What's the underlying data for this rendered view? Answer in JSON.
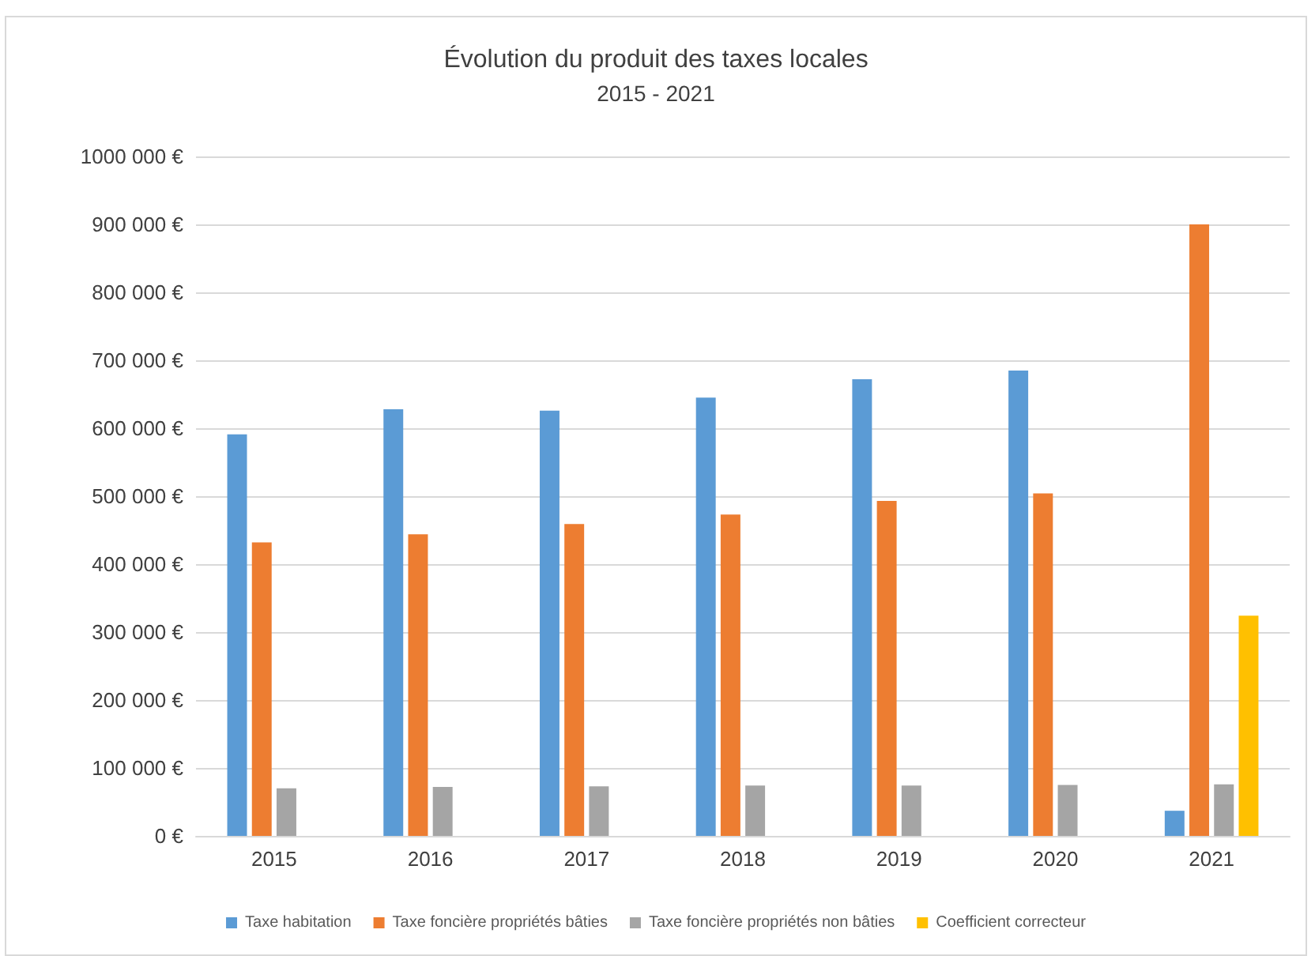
{
  "chart_data": {
    "type": "bar",
    "title": "Évolution du produit des taxes locales",
    "subtitle": "2015 - 2021",
    "categories": [
      "2015",
      "2016",
      "2017",
      "2018",
      "2019",
      "2020",
      "2021"
    ],
    "series": [
      {
        "name": "Taxe habitation",
        "color": "#5b9bd5",
        "values": [
          591000,
          628000,
          626000,
          645000,
          672000,
          685000,
          37000
        ]
      },
      {
        "name": "Taxe foncière propriétés bâties",
        "color": "#ed7d31",
        "values": [
          432000,
          444000,
          459000,
          473000,
          493000,
          504000,
          900000
        ]
      },
      {
        "name": "Taxe foncière propriétés non bâties",
        "color": "#a5a5a5",
        "values": [
          70000,
          72000,
          73000,
          74000,
          74000,
          75000,
          76000
        ]
      },
      {
        "name": "Coefficient correcteur",
        "color": "#ffc000",
        "values": [
          null,
          null,
          null,
          null,
          null,
          null,
          324000
        ]
      }
    ],
    "ylim": [
      0,
      1000000
    ],
    "yticks": [
      {
        "value": 0,
        "label": "0 €"
      },
      {
        "value": 100000,
        "label": "100 000 €"
      },
      {
        "value": 200000,
        "label": "200 000 €"
      },
      {
        "value": 300000,
        "label": "300 000 €"
      },
      {
        "value": 400000,
        "label": "400 000 €"
      },
      {
        "value": 500000,
        "label": "500 000 €"
      },
      {
        "value": 600000,
        "label": "600 000 €"
      },
      {
        "value": 700000,
        "label": "700 000 €"
      },
      {
        "value": 800000,
        "label": "800 000 €"
      },
      {
        "value": 900000,
        "label": "900 000 €"
      },
      {
        "value": 1000000,
        "label": "1000 000 €"
      }
    ],
    "grid": "y",
    "legend": "bottom"
  }
}
